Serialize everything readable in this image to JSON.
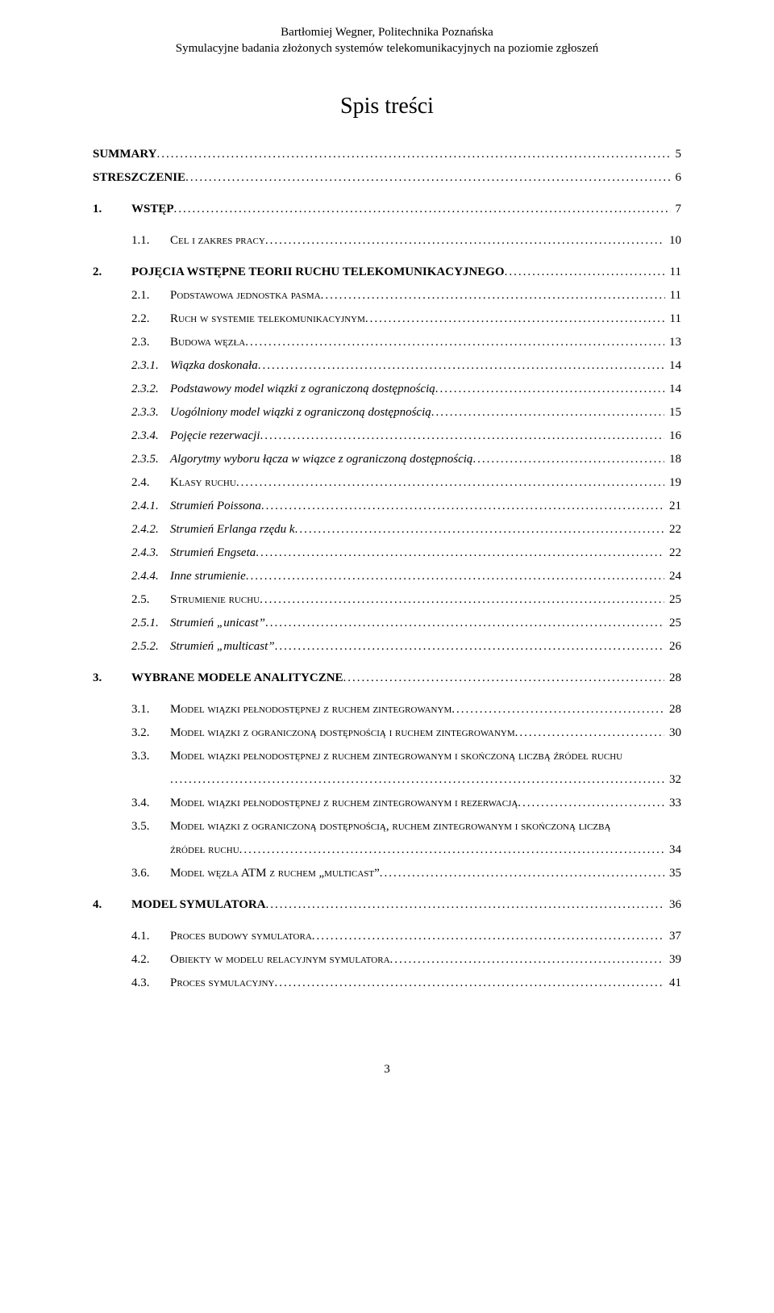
{
  "header": {
    "line1": "Bartłomiej Wegner, Politechnika Poznańska",
    "line2": "Symulacyjne badania złożonych systemów telekomunikacyjnych na poziomie zgłoszeń"
  },
  "title": "Spis treści",
  "footer_page": "3",
  "colors": {
    "text": "#000000",
    "background": "#ffffff"
  },
  "typography": {
    "body_fontsize": 15,
    "title_fontsize": 28,
    "font_family": "Times New Roman"
  },
  "toc": [
    {
      "num": "",
      "label": "SUMMARY",
      "page": "5",
      "level": 0,
      "style": "bold"
    },
    {
      "num": "",
      "label": "STRESZCZENIE",
      "page": "6",
      "level": 0,
      "style": "bold"
    },
    {
      "num": "1.",
      "label": "WSTĘP",
      "page": "7",
      "level": 1,
      "style": "bold"
    },
    {
      "num": "1.1.",
      "label": "Cel i zakres pracy",
      "page": "10",
      "level": 2,
      "style": "sc"
    },
    {
      "num": "2.",
      "label": "POJĘCIA WSTĘPNE TEORII RUCHU TELEKOMUNIKACYJNEGO",
      "page": "11",
      "level": 1,
      "style": "bold"
    },
    {
      "num": "2.1.",
      "label": "Podstawowa jednostka pasma",
      "page": "11",
      "level": 2,
      "style": "sc"
    },
    {
      "num": "2.2.",
      "label": "Ruch w systemie telekomunikacyjnym",
      "page": "11",
      "level": 2,
      "style": "sc"
    },
    {
      "num": "2.3.",
      "label": "Budowa węzła",
      "page": "13",
      "level": 2,
      "style": "sc"
    },
    {
      "num": "2.3.1.",
      "label": "Wiązka doskonała",
      "page": "14",
      "level": 3,
      "style": "italic"
    },
    {
      "num": "2.3.2.",
      "label": "Podstawowy model wiązki z ograniczoną dostępnością",
      "page": "14",
      "level": 3,
      "style": "italic"
    },
    {
      "num": "2.3.3.",
      "label": "Uogólniony model wiązki z ograniczoną dostępnością",
      "page": "15",
      "level": 3,
      "style": "italic"
    },
    {
      "num": "2.3.4.",
      "label": "Pojęcie rezerwacji",
      "page": "16",
      "level": 3,
      "style": "italic"
    },
    {
      "num": "2.3.5.",
      "label": "Algorytmy wyboru łącza w wiązce z ograniczoną dostępnością",
      "page": "18",
      "level": 3,
      "style": "italic"
    },
    {
      "num": "2.4.",
      "label": "Klasy ruchu",
      "page": "19",
      "level": 2,
      "style": "sc"
    },
    {
      "num": "2.4.1.",
      "label": "Strumień Poissona",
      "page": "21",
      "level": 3,
      "style": "italic"
    },
    {
      "num": "2.4.2.",
      "label": "Strumień Erlanga rzędu k",
      "page": "22",
      "level": 3,
      "style": "italic"
    },
    {
      "num": "2.4.3.",
      "label": "Strumień Engseta",
      "page": "22",
      "level": 3,
      "style": "italic"
    },
    {
      "num": "2.4.4.",
      "label": "Inne strumienie",
      "page": "24",
      "level": 3,
      "style": "italic"
    },
    {
      "num": "2.5.",
      "label": "Strumienie ruchu",
      "page": "25",
      "level": 2,
      "style": "sc"
    },
    {
      "num": "2.5.1.",
      "label": "Strumień „unicast”",
      "page": "25",
      "level": 3,
      "style": "italic"
    },
    {
      "num": "2.5.2.",
      "label": "Strumień „multicast”",
      "page": "26",
      "level": 3,
      "style": "italic"
    },
    {
      "num": "3.",
      "label": "WYBRANE MODELE ANALITYCZNE",
      "page": "28",
      "level": 1,
      "style": "bold"
    },
    {
      "num": "3.1.",
      "label": "Model wiązki pełnodostępnej z ruchem zintegrowanym",
      "page": "28",
      "level": 2,
      "style": "sc"
    },
    {
      "num": "3.2.",
      "label": "Model wiązki z ograniczoną dostępnością i ruchem zintegrowanym",
      "page": "30",
      "level": 2,
      "style": "sc"
    },
    {
      "num": "3.3.",
      "label": "Model wiązki pełnodostępnej z ruchem zintegrowanym i skończoną liczbą źródeł ruchu",
      "page": "32",
      "level": 2,
      "style": "sc",
      "wrap": true
    },
    {
      "num": "3.4.",
      "label": "Model wiązki pełnodostępnej z ruchem zintegrowanym i rezerwacją",
      "page": "33",
      "level": 2,
      "style": "sc"
    },
    {
      "num": "3.5.",
      "label": "Model wiązki z ograniczoną dostępnością, ruchem zintegrowanym i skończoną liczbą źródeł ruchu",
      "page": "34",
      "level": 2,
      "style": "sc",
      "wrap": true,
      "second": "źródeł ruchu",
      "first": "Model wiązki z ograniczoną dostępnością, ruchem zintegrowanym i skończoną liczbą"
    },
    {
      "num": "3.6.",
      "label": "Model węzła ATM z ruchem „multicast”",
      "page": "35",
      "level": 2,
      "style": "sc"
    },
    {
      "num": "4.",
      "label": "MODEL SYMULATORA",
      "page": "36",
      "level": 1,
      "style": "bold"
    },
    {
      "num": "4.1.",
      "label": "Proces budowy symulatora",
      "page": "37",
      "level": 2,
      "style": "sc"
    },
    {
      "num": "4.2.",
      "label": "Obiekty w modelu relacyjnym symulatora",
      "page": "39",
      "level": 2,
      "style": "sc"
    },
    {
      "num": "4.3.",
      "label": "Proces symulacyjny",
      "page": "41",
      "level": 2,
      "style": "sc"
    }
  ],
  "wrap_33": {
    "first": "Model wiązki pełnodostępnej z ruchem zintegrowanym i skończoną liczbą źródeł ruchu"
  }
}
